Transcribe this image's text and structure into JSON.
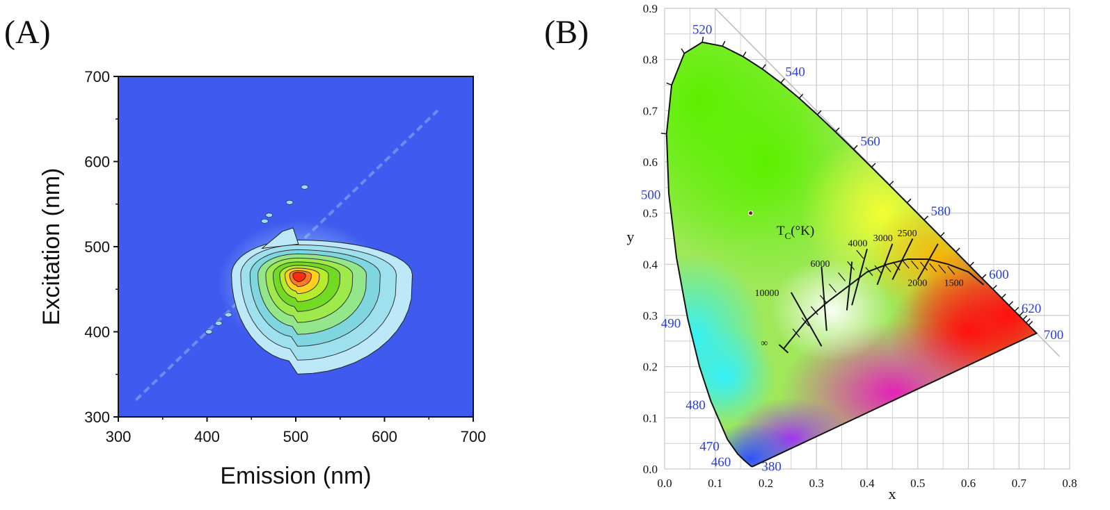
{
  "chart_data": [
    {
      "panel": "(A)",
      "type": "heatmap",
      "xlabel": "Emission (nm)",
      "ylabel": "Excitation (nm)",
      "xlim": [
        300,
        700
      ],
      "ylim": [
        300,
        700
      ],
      "xticks": [
        300,
        400,
        500,
        600,
        700
      ],
      "yticks": [
        300,
        400,
        500,
        600,
        700
      ],
      "grid": false,
      "peak": {
        "emission": 502,
        "excitation": 467
      },
      "scatter_diagonal": true,
      "colors": {
        "background": "#3f5bef",
        "low": "#9fd8f2",
        "mid": "#7edc2a",
        "high": "#ff2a10"
      }
    },
    {
      "panel": "(B)",
      "type": "scatter",
      "xlabel": "x",
      "ylabel": "y",
      "xlim": [
        0.0,
        0.8
      ],
      "ylim": [
        0.0,
        0.9
      ],
      "xticks": [
        "0.0",
        "0.1",
        "0.2",
        "0.3",
        "0.4",
        "0.5",
        "0.6",
        "0.7",
        "0.8"
      ],
      "yticks": [
        "0.0",
        "0.1",
        "0.2",
        "0.3",
        "0.4",
        "0.5",
        "0.6",
        "0.7",
        "0.8",
        "0.9"
      ],
      "grid": true,
      "point": {
        "x": 0.17,
        "y": 0.5
      },
      "wavelength_labels": [
        {
          "text": "380",
          "x": 0.175,
          "y": 0.005
        },
        {
          "text": "460",
          "x": 0.144,
          "y": 0.03
        },
        {
          "text": "470",
          "x": 0.124,
          "y": 0.058
        },
        {
          "text": "480",
          "x": 0.091,
          "y": 0.133
        },
        {
          "text": "490",
          "x": 0.045,
          "y": 0.295
        },
        {
          "text": "500",
          "x": 0.008,
          "y": 0.538
        },
        {
          "text": "520",
          "x": 0.074,
          "y": 0.834
        },
        {
          "text": "540",
          "x": 0.23,
          "y": 0.754
        },
        {
          "text": "560",
          "x": 0.373,
          "y": 0.624
        },
        {
          "text": "580",
          "x": 0.512,
          "y": 0.487
        },
        {
          "text": "600",
          "x": 0.627,
          "y": 0.372
        },
        {
          "text": "620",
          "x": 0.691,
          "y": 0.308
        },
        {
          "text": "700",
          "x": 0.735,
          "y": 0.265
        }
      ],
      "locus_title_main": "T",
      "locus_title_sub": "C",
      "locus_title_rest": "(°K)",
      "cct_labels": [
        "10000",
        "6000",
        "4000",
        "3000",
        "2500",
        "2000",
        "1500",
        "∞"
      ],
      "colors": {
        "grid": "#c8c8c8",
        "wavelength": "#2b3fd6",
        "point": "#7a1a3a"
      }
    }
  ]
}
